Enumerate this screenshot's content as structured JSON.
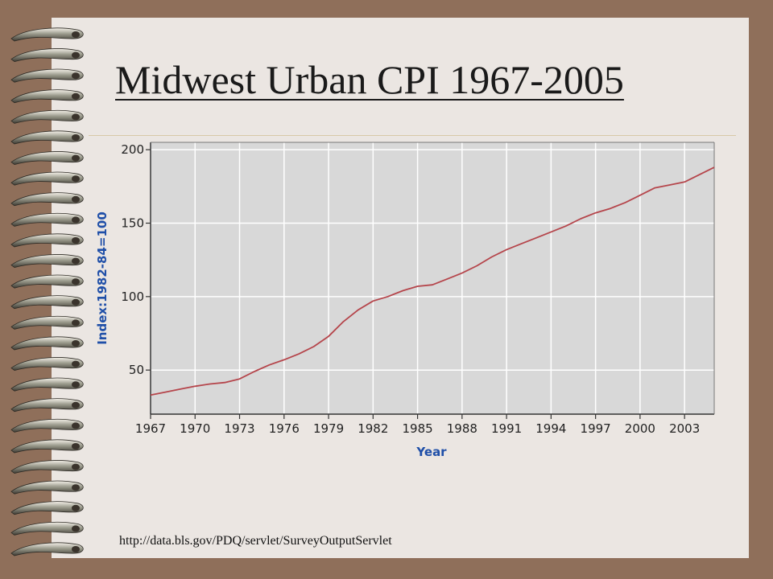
{
  "slide": {
    "title": "Midwest Urban CPI 1967-2005",
    "source": "http://data.bls.gov/PDQ/servlet/SurveyOutputServlet"
  },
  "colors": {
    "background": "#8f6f5a",
    "paper": "#ebe6e2",
    "plot_area": "#d8d8d8",
    "series_line": "#b5454b",
    "axis_title": "#1f4fa8"
  },
  "chart_data": {
    "type": "line",
    "title": "",
    "xlabel": "Year",
    "ylabel": "Index:1982-84=100",
    "xlim": [
      1967,
      2005
    ],
    "ylim": [
      20,
      205
    ],
    "x_ticks": [
      1967,
      1970,
      1973,
      1976,
      1979,
      1982,
      1985,
      1988,
      1991,
      1994,
      1997,
      2000,
      2003
    ],
    "x_tick_labels": [
      "1967",
      "1970",
      "1973",
      "1976",
      "1979",
      "1982",
      "1985",
      "1988",
      "1991",
      "1994",
      "1997",
      "2000",
      "2003"
    ],
    "y_ticks": [
      50,
      100,
      150,
      200
    ],
    "y_tick_labels": [
      "50",
      "100",
      "150",
      "200"
    ],
    "grid": true,
    "legend": "none",
    "series": [
      {
        "x": [
          1967,
          1968,
          1969,
          1970,
          1971,
          1972,
          1973,
          1974,
          1975,
          1976,
          1977,
          1978,
          1979,
          1980,
          1981,
          1982,
          1983,
          1984,
          1985,
          1986,
          1987,
          1988,
          1989,
          1990,
          1991,
          1992,
          1993,
          1994,
          1995,
          1996,
          1997,
          1998,
          1999,
          2000,
          2001,
          2002,
          2003,
          2004,
          2005
        ],
        "values": [
          33,
          35,
          37,
          39,
          40.5,
          41.5,
          44,
          49,
          53.5,
          57,
          61,
          66,
          73,
          83,
          91,
          97,
          100,
          104,
          107,
          108,
          112,
          116,
          121,
          127,
          132,
          136,
          140,
          144,
          148,
          153,
          157,
          160,
          164,
          169,
          174,
          176,
          178,
          183,
          188
        ]
      }
    ]
  }
}
